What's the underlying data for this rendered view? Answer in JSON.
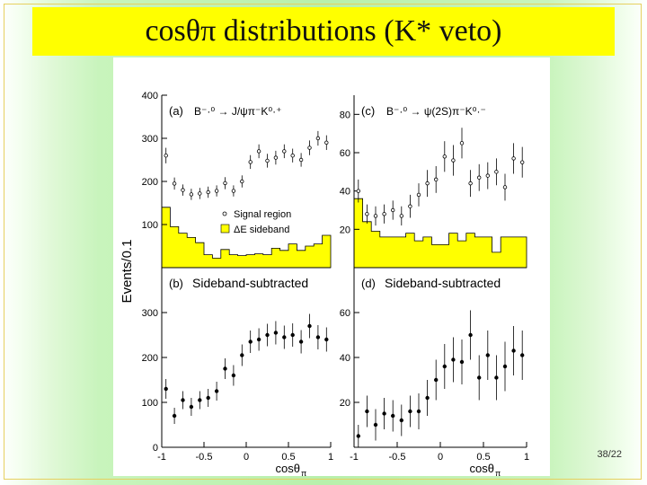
{
  "slide": {
    "title": "cosθπ distributions (K* veto)",
    "title_main": "cosθ",
    "title_sub": "π",
    "title_rest": " distributions (K* veto)",
    "page_number": "38/22",
    "colors": {
      "title_bg": "#ffff00",
      "sideband_fill": "#ffff00",
      "slide_bg": "#b8f0ab"
    }
  },
  "chart_data": [
    {
      "type": "scatter",
      "panel": "(a)",
      "label_prefix": "(a)",
      "decay": "B⁻·⁰ → J/ψπ⁻K⁰·⁺",
      "ylim": [
        0,
        400
      ],
      "yticks": [
        "400",
        "300",
        "200",
        "100"
      ],
      "ytick_values": [
        400,
        300,
        200,
        100
      ],
      "xlim": [
        -1,
        1
      ],
      "legend": {
        "signal": "Signal region",
        "sideband": "ΔE sideband"
      },
      "x": [
        -0.95,
        -0.85,
        -0.75,
        -0.65,
        -0.55,
        -0.45,
        -0.35,
        -0.25,
        -0.15,
        -0.05,
        0.05,
        0.15,
        0.25,
        0.35,
        0.45,
        0.55,
        0.65,
        0.75,
        0.85,
        0.95
      ],
      "signal": [
        260,
        195,
        180,
        170,
        172,
        175,
        178,
        196,
        178,
        200,
        245,
        270,
        248,
        255,
        270,
        260,
        250,
        278,
        300,
        290
      ],
      "signal_err": [
        18,
        14,
        13,
        13,
        13,
        13,
        13,
        14,
        13,
        14,
        16,
        16,
        16,
        16,
        16,
        16,
        16,
        17,
        17,
        17
      ],
      "sideband": [
        140,
        95,
        80,
        70,
        58,
        30,
        22,
        42,
        30,
        28,
        30,
        32,
        30,
        45,
        40,
        55,
        40,
        50,
        55,
        75
      ]
    },
    {
      "type": "scatter",
      "panel": "(c)",
      "label_prefix": "(c)",
      "decay": "B⁻·⁰ → ψ(2S)π⁻K⁰·⁻",
      "ylim": [
        0,
        90
      ],
      "yticks": [
        "80",
        "60",
        "40",
        "20"
      ],
      "ytick_values": [
        80,
        60,
        40,
        20
      ],
      "xlim": [
        -1,
        1
      ],
      "x": [
        -0.95,
        -0.85,
        -0.75,
        -0.65,
        -0.55,
        -0.45,
        -0.35,
        -0.25,
        -0.15,
        -0.05,
        0.05,
        0.15,
        0.25,
        0.35,
        0.45,
        0.55,
        0.65,
        0.75,
        0.85,
        0.95
      ],
      "signal": [
        40,
        28,
        27,
        28,
        30,
        27,
        32,
        38,
        44,
        46,
        58,
        56,
        65,
        44,
        47,
        48,
        50,
        42,
        57,
        55
      ],
      "signal_err": [
        6,
        5,
        5,
        5,
        5,
        5,
        6,
        6,
        7,
        7,
        8,
        8,
        8,
        7,
        7,
        7,
        7,
        7,
        8,
        8
      ],
      "sideband": [
        36,
        24,
        19,
        16,
        16,
        16,
        18,
        14,
        16,
        12,
        12,
        18,
        14,
        18,
        16,
        16,
        8,
        16,
        16,
        16
      ]
    },
    {
      "type": "scatter",
      "panel": "(b)",
      "label_prefix": "(b)",
      "subtitle": "Sideband-subtracted",
      "ylim": [
        0,
        400
      ],
      "yticks": [
        "300",
        "200",
        "100",
        "0"
      ],
      "ytick_values": [
        300,
        200,
        100,
        0
      ],
      "xlim": [
        -1,
        1
      ],
      "xticks": [
        "-1",
        "-0.5",
        "0",
        "0.5",
        "1"
      ],
      "xtick_values": [
        -1,
        -0.5,
        0,
        0.5,
        1
      ],
      "xlabel_main": "cosθ",
      "xlabel_sub": "π",
      "x": [
        -0.95,
        -0.85,
        -0.75,
        -0.65,
        -0.55,
        -0.45,
        -0.35,
        -0.25,
        -0.15,
        -0.05,
        0.05,
        0.15,
        0.25,
        0.35,
        0.45,
        0.55,
        0.65,
        0.75,
        0.85,
        0.95
      ],
      "y": [
        130,
        70,
        105,
        90,
        105,
        110,
        125,
        175,
        160,
        205,
        235,
        240,
        250,
        255,
        245,
        250,
        235,
        270,
        245,
        240
      ],
      "err": [
        22,
        18,
        20,
        20,
        20,
        20,
        21,
        23,
        23,
        24,
        25,
        25,
        25,
        26,
        26,
        26,
        26,
        27,
        27,
        27
      ]
    },
    {
      "type": "scatter",
      "panel": "(d)",
      "label_prefix": "(d)",
      "subtitle": "Sideband-subtracted",
      "ylim": [
        0,
        80
      ],
      "yticks": [
        "60",
        "40",
        "20"
      ],
      "ytick_values": [
        60,
        40,
        20
      ],
      "xlim": [
        -1,
        1
      ],
      "xticks": [
        "-1",
        "-0.5",
        "0",
        "0.5",
        "1"
      ],
      "xtick_values": [
        -1,
        -0.5,
        0,
        0.5,
        1
      ],
      "xlabel_main": "cosθ",
      "xlabel_sub": "π",
      "x": [
        -0.95,
        -0.85,
        -0.75,
        -0.65,
        -0.55,
        -0.45,
        -0.35,
        -0.25,
        -0.15,
        -0.05,
        0.05,
        0.15,
        0.25,
        0.35,
        0.45,
        0.55,
        0.65,
        0.75,
        0.85,
        0.95
      ],
      "y": [
        5,
        16,
        10,
        15,
        14,
        12,
        16,
        16,
        22,
        30,
        36,
        39,
        38,
        50,
        31,
        41,
        31,
        36,
        43,
        41
      ],
      "err": [
        5,
        7,
        7,
        7,
        7,
        7,
        7,
        8,
        8,
        9,
        10,
        10,
        10,
        11,
        10,
        11,
        10,
        11,
        11,
        11
      ]
    }
  ],
  "shared": {
    "ylabel": "Events/0.1"
  }
}
